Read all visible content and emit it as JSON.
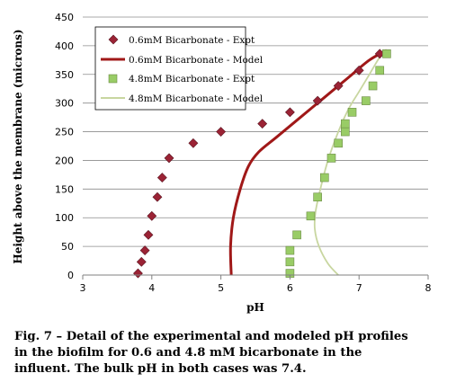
{
  "chart_data": {
    "type": "scatter",
    "xlabel": "pH",
    "ylabel": "Height above the membrane (microns)",
    "xlim": [
      3,
      8
    ],
    "ylim": [
      0,
      450
    ],
    "xticks": [
      "3",
      "4",
      "5",
      "6",
      "7",
      "8"
    ],
    "yticks": [
      "0",
      "50",
      "100",
      "150",
      "200",
      "250",
      "300",
      "350",
      "400",
      "450"
    ],
    "grid": "horizontal",
    "legend_position": "top-left",
    "series": [
      {
        "name": "0.6mM Bicarbonate - Expt",
        "kind": "marker",
        "marker": "diamond",
        "color": "#9b2335",
        "points": [
          [
            3.8,
            3
          ],
          [
            3.85,
            23
          ],
          [
            3.9,
            43
          ],
          [
            3.95,
            70
          ],
          [
            4.0,
            103
          ],
          [
            4.08,
            136
          ],
          [
            4.15,
            170
          ],
          [
            4.25,
            204
          ],
          [
            4.6,
            230
          ],
          [
            5.0,
            250
          ],
          [
            5.6,
            264
          ],
          [
            6.0,
            284
          ],
          [
            6.4,
            304
          ],
          [
            6.7,
            330
          ],
          [
            7.0,
            357
          ],
          [
            7.3,
            386
          ]
        ]
      },
      {
        "name": "0.6mM Bicarbonate - Model",
        "kind": "line",
        "color": "#a01818",
        "points": [
          [
            5.15,
            0
          ],
          [
            5.14,
            50
          ],
          [
            5.18,
            100
          ],
          [
            5.28,
            150
          ],
          [
            5.4,
            190
          ],
          [
            5.55,
            215
          ],
          [
            5.8,
            240
          ],
          [
            6.1,
            270
          ],
          [
            6.5,
            310
          ],
          [
            6.85,
            345
          ],
          [
            7.15,
            375
          ],
          [
            7.4,
            392
          ]
        ]
      },
      {
        "name": "4.8mM Bicarbonate - Expt",
        "kind": "marker",
        "marker": "square",
        "color": "#99cc66",
        "points": [
          [
            6.0,
            3
          ],
          [
            6.0,
            23
          ],
          [
            6.0,
            43
          ],
          [
            6.1,
            70
          ],
          [
            6.3,
            103
          ],
          [
            6.4,
            136
          ],
          [
            6.5,
            170
          ],
          [
            6.6,
            204
          ],
          [
            6.7,
            230
          ],
          [
            6.8,
            250
          ],
          [
            6.8,
            264
          ],
          [
            6.9,
            284
          ],
          [
            7.1,
            304
          ],
          [
            7.2,
            330
          ],
          [
            7.3,
            357
          ],
          [
            7.4,
            386
          ]
        ]
      },
      {
        "name": "4.8mM Bicarbonate - Model",
        "kind": "line",
        "color": "#c8d6a0",
        "points": [
          [
            6.7,
            0
          ],
          [
            6.55,
            20
          ],
          [
            6.42,
            50
          ],
          [
            6.36,
            80
          ],
          [
            6.37,
            110
          ],
          [
            6.44,
            150
          ],
          [
            6.55,
            200
          ],
          [
            6.7,
            250
          ],
          [
            6.85,
            290
          ],
          [
            7.0,
            320
          ],
          [
            7.15,
            350
          ],
          [
            7.3,
            380
          ],
          [
            7.4,
            392
          ]
        ]
      }
    ]
  },
  "caption": {
    "line1": "Fig. 7 – Detail of the experimental and modeled pH profiles",
    "line2": "in the biofilm for 0.6 and 4.8 mM bicarbonate in the",
    "line3": "influent. The bulk pH in both cases was 7.4."
  }
}
